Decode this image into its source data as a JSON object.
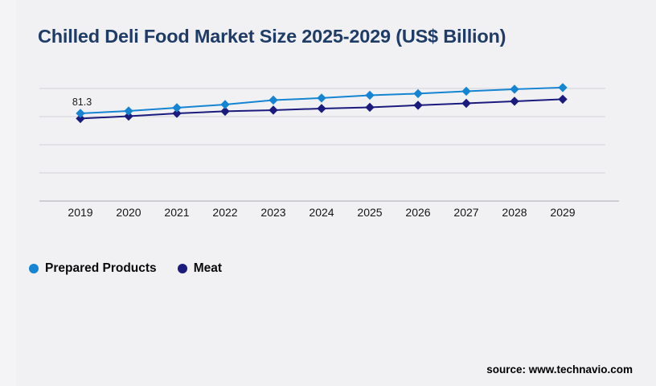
{
  "header": {
    "title": "Chilled Deli Food Market Size 2025-2029 (US$ Billion)"
  },
  "chart_data": {
    "type": "line",
    "title": "Chilled Deli Food Market Size 2025-2029 (US$ Billion)",
    "categories": [
      "2019",
      "2020",
      "2021",
      "2022",
      "2023",
      "2024",
      "2025",
      "2026",
      "2027",
      "2028",
      "2029"
    ],
    "series": [
      {
        "name": "Prepared Products",
        "color": "#1584d2",
        "marker": "diamond",
        "values": [
          81.3,
          83.5,
          86.5,
          89.5,
          93.6,
          95.5,
          98.1,
          99.6,
          101.8,
          103.7,
          105.2
        ]
      },
      {
        "name": "Meat",
        "color": "#1b1b7e",
        "marker": "diamond",
        "values": [
          76.5,
          78.7,
          81.3,
          83.2,
          84.3,
          85.8,
          86.9,
          88.8,
          90.6,
          92.5,
          94.4
        ]
      }
    ],
    "data_label": {
      "series": "Prepared Products",
      "category": "2019",
      "text": "81.3"
    },
    "xlabel": "",
    "ylabel": "",
    "ylim": [
      0,
      130
    ],
    "grid": "horizontal",
    "y_axis_labels_visible": false,
    "legend_position": "bottom-left"
  },
  "legend": {
    "items": [
      {
        "label": "Prepared Products",
        "color": "#1584d2"
      },
      {
        "label": "Meat",
        "color": "#1b1b7e"
      }
    ]
  },
  "footer": {
    "source_label": "source: www.technavio.com"
  },
  "colors": {
    "background": "#f1f1f4",
    "title_text": "#1f3c67",
    "gridline": "#d4d4d8",
    "axis_line": "#c2c2c6",
    "tick_text": "#141414",
    "data_label_text": "#1c1c1c"
  }
}
